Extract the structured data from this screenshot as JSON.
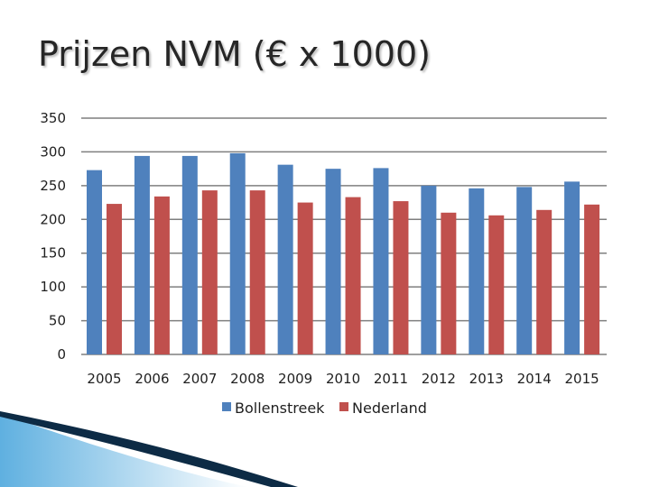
{
  "slide": {
    "title": "Prijzen NVM (€ x 1000)"
  },
  "colors": {
    "series_1": "#4f81bd",
    "series_2": "#c0504d",
    "gridline": "#7f7f7f",
    "deco_dark": "#0d2b45",
    "deco_light": "#5fb0e0"
  },
  "chart_data": {
    "type": "bar",
    "title": "",
    "xlabel": "",
    "ylabel": "",
    "categories": [
      "2005",
      "2006",
      "2007",
      "2008",
      "2009",
      "2010",
      "2011",
      "2012",
      "2013",
      "2014",
      "2015"
    ],
    "series": [
      {
        "name": "Bollenstreek",
        "values": [
          273,
          294,
          294,
          298,
          281,
          275,
          276,
          250,
          246,
          248,
          256
        ]
      },
      {
        "name": "Nederland",
        "values": [
          223,
          234,
          243,
          243,
          225,
          233,
          227,
          210,
          206,
          214,
          222
        ]
      }
    ],
    "ylim": [
      0,
      350
    ],
    "yticks": [
      0,
      50,
      100,
      150,
      200,
      250,
      300,
      350
    ],
    "grid": true,
    "legend": "bottom"
  }
}
